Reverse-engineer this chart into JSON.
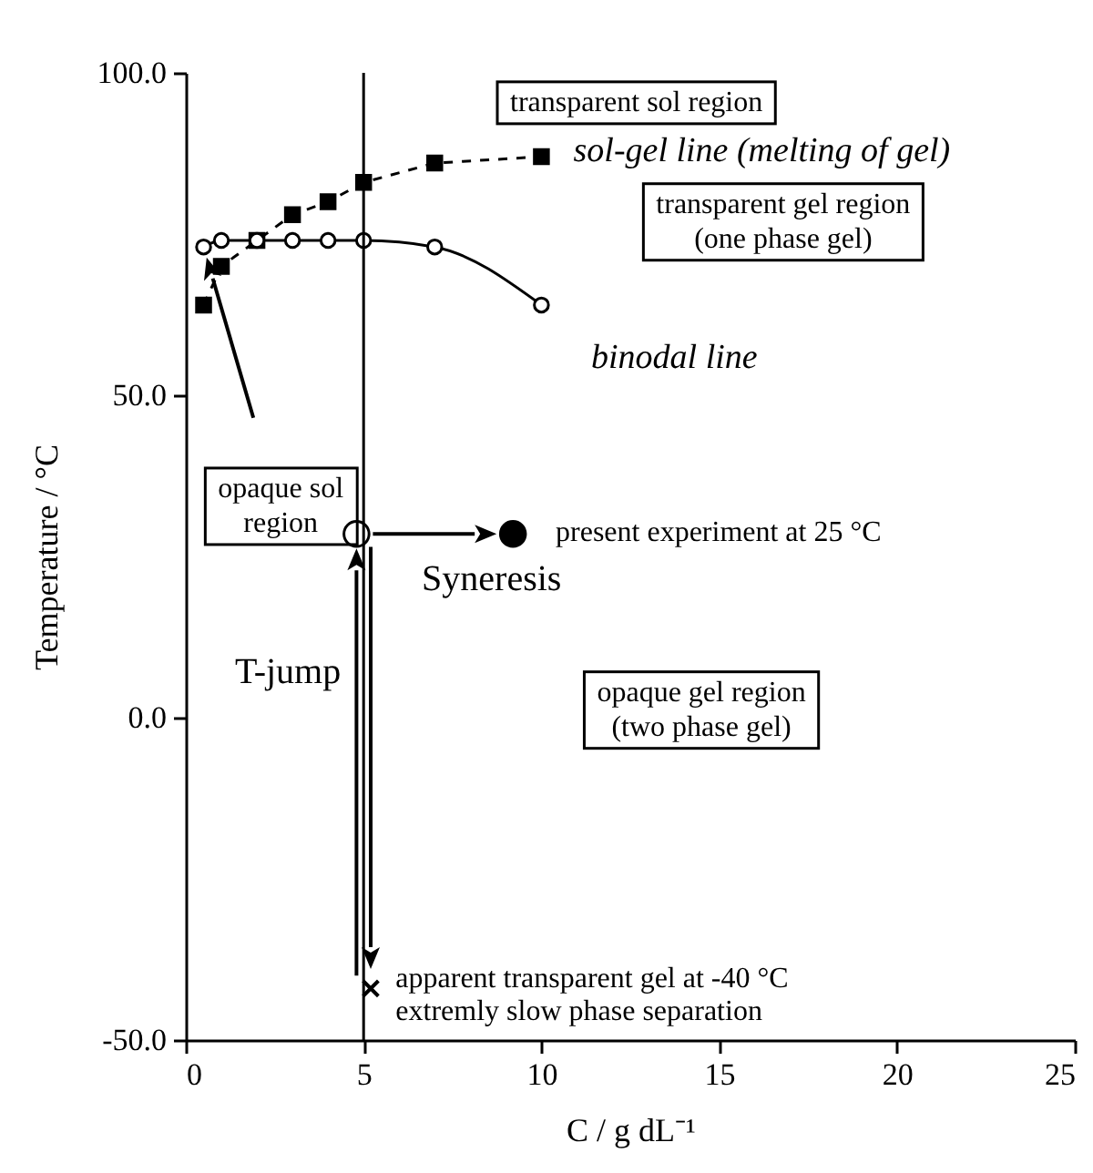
{
  "chart_data": {
    "type": "line",
    "xlabel": "C / g dL⁻¹",
    "ylabel": "Temperature / °C",
    "xlim": [
      0,
      25
    ],
    "ylim": [
      -50,
      100
    ],
    "xticks": [
      0,
      5,
      10,
      15,
      20,
      25
    ],
    "yticks": [
      {
        "value": -50,
        "label": "-50.0"
      },
      {
        "value": 0,
        "label": "0.0"
      },
      {
        "value": 50,
        "label": "50.0"
      },
      {
        "value": 100,
        "label": "100.0"
      }
    ],
    "grid": false,
    "series": [
      {
        "name": "sol-gel line (melting of gel)",
        "color": "#000000",
        "marker": "square",
        "line_style": "dashed",
        "x": [
          0.5,
          1,
          2,
          3,
          4,
          5,
          7,
          10
        ],
        "values": [
          64,
          70,
          74,
          78,
          80,
          83,
          86,
          87
        ]
      },
      {
        "name": "binodal line",
        "color": "#000000",
        "marker": "circle",
        "line_style": "solid",
        "x": [
          0.5,
          1,
          2,
          3,
          4,
          5,
          7,
          10
        ],
        "values": [
          73,
          74,
          74,
          74,
          74,
          74,
          73,
          64
        ]
      },
      {
        "type": "scatter",
        "color": "#000000",
        "marker": "circle",
        "x": [
          4.8
        ],
        "values": [
          28.5
        ]
      },
      {
        "type": "scatter",
        "color": "#000000",
        "marker": "circle",
        "x": [
          9.2
        ],
        "values": [
          28.5
        ]
      },
      {
        "type": "scatter",
        "color": "#000000",
        "marker": "cross",
        "x": [
          5.2
        ],
        "values": [
          -42
        ]
      }
    ],
    "ref_lines": [
      {
        "axis": "x",
        "value": 5,
        "color": "#000000"
      }
    ],
    "annotations": [
      "transparent sol region",
      "transparent gel region\n(one phase gel)",
      "opaque sol\nregion",
      "present experiment at 25 °C",
      {
        "text": "Syneresis",
        "x": 9.2,
        "y": 28.5
      },
      "T-jump",
      "opaque gel region\n(two phase gel)",
      "apparent transparent gel at -40 °C\nextremly slow phase separation"
    ]
  }
}
